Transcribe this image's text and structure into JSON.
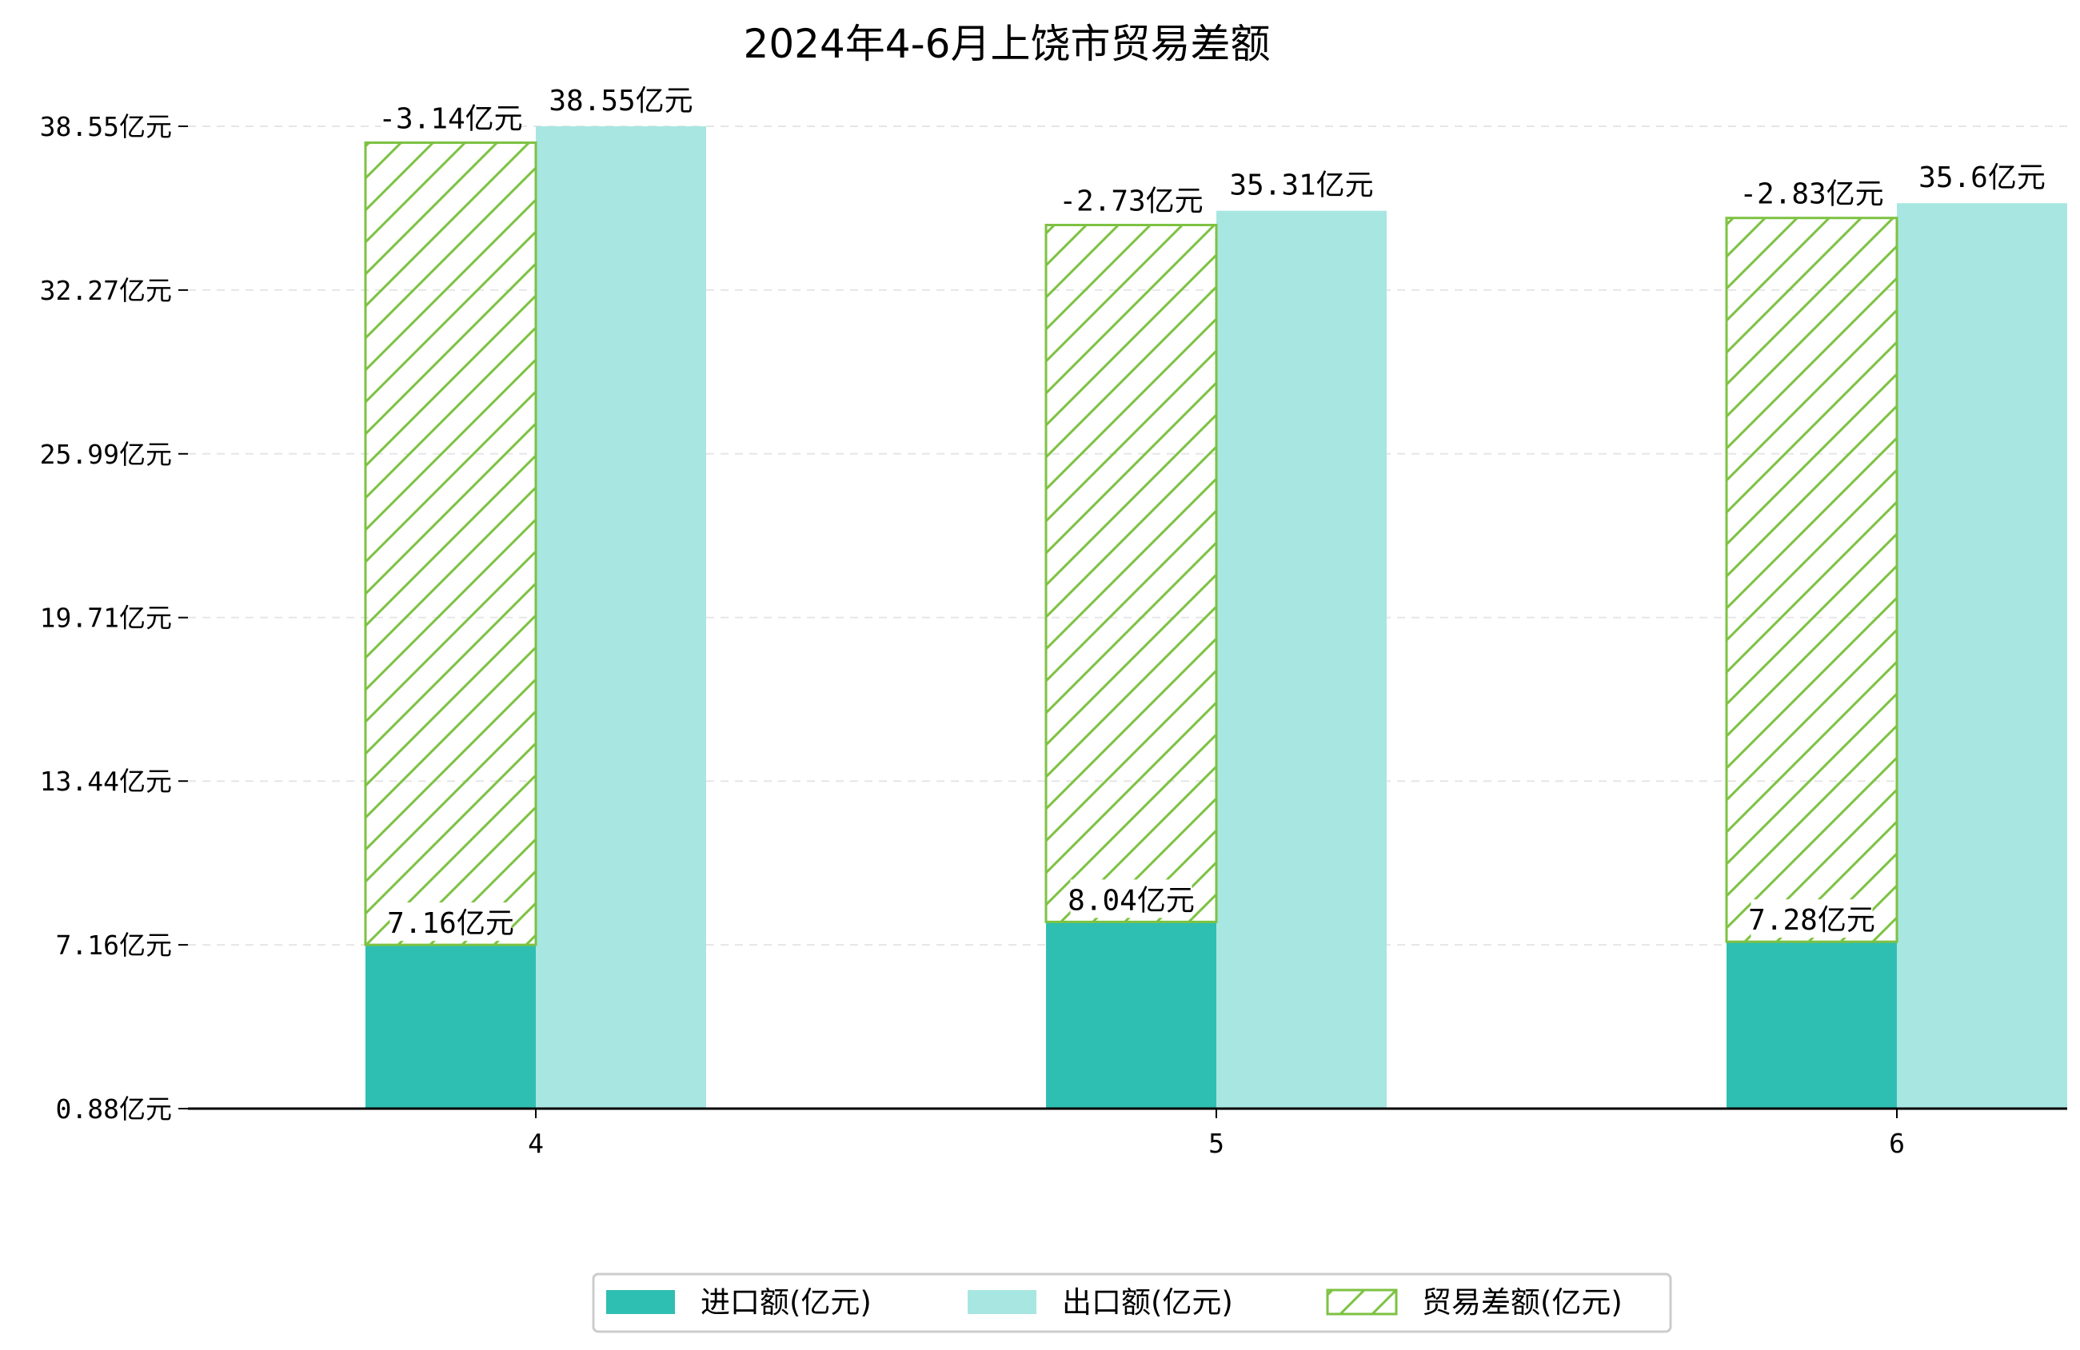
{
  "chart_data": {
    "type": "bar",
    "title": "2024年4-6月上饶市贸易差额",
    "xlabel": "",
    "ylabel": "",
    "categories": [
      "4",
      "5",
      "6"
    ],
    "y_ticks": [
      "0.88亿元",
      "7.16亿元",
      "13.44亿元",
      "19.71亿元",
      "25.99亿元",
      "32.27亿元",
      "38.55亿元"
    ],
    "y_tick_values": [
      0.88,
      7.16,
      13.44,
      19.71,
      25.99,
      32.27,
      38.55
    ],
    "ylim": [
      0.88,
      38.55
    ],
    "grid": "horizontal dashed",
    "legend_position": "bottom-center",
    "series": [
      {
        "name": "进口额(亿元)",
        "values": [
          7.16,
          8.04,
          7.28
        ],
        "labels": [
          "7.16亿元",
          "8.04亿元",
          "7.28亿元"
        ],
        "color": "#2fbfb2",
        "style": "solid"
      },
      {
        "name": "出口额(亿元)",
        "values": [
          38.55,
          35.31,
          35.6
        ],
        "labels": [
          "38.55亿元",
          "35.31亿元",
          "35.6亿元"
        ],
        "color": "#a8e6e1",
        "style": "solid"
      },
      {
        "name": "贸易差额(亿元)",
        "values": [
          -3.14,
          -2.73,
          -2.83
        ],
        "labels": [
          "-3.14亿元",
          "-2.73亿元",
          "-2.83亿元"
        ],
        "color": "#7dc242",
        "style": "hatched"
      }
    ]
  }
}
